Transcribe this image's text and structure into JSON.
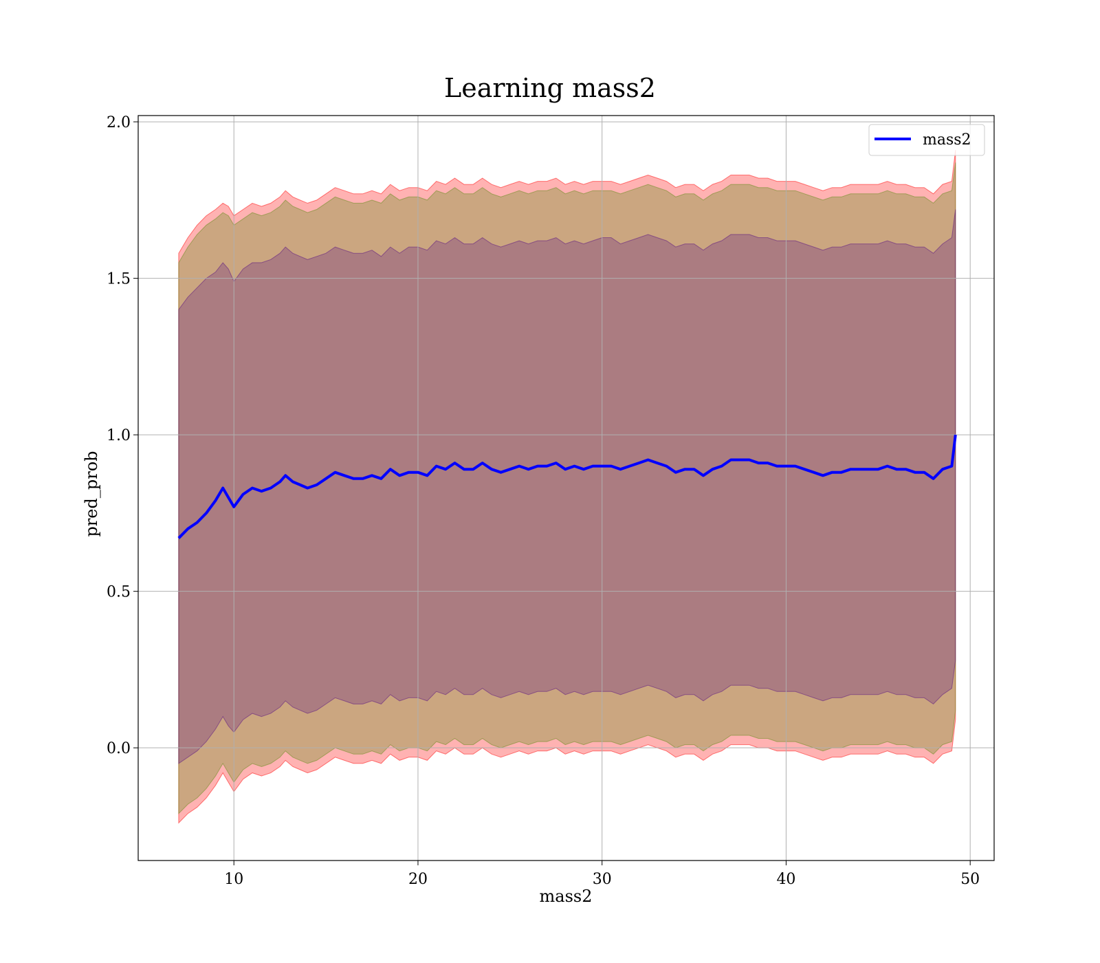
{
  "chart_data": {
    "type": "line",
    "title": "Learning mass2",
    "xlabel": "mass2",
    "ylabel": "pred_prob",
    "xlim": [
      4.8,
      51.3
    ],
    "ylim": [
      -0.36,
      2.02
    ],
    "xticks": [
      10,
      20,
      30,
      40,
      50
    ],
    "yticks": [
      0.0,
      0.5,
      1.0,
      1.5,
      2.0
    ],
    "xtick_labels": [
      "10",
      "20",
      "30",
      "40",
      "50"
    ],
    "ytick_labels": [
      "0.0",
      "0.5",
      "1.0",
      "1.5",
      "2.0"
    ],
    "grid": true,
    "legend": {
      "position": "top-right",
      "entries": [
        "mass2"
      ]
    },
    "series": [
      {
        "name": "mass2",
        "color": "#0000ff",
        "x": [
          7.0,
          7.5,
          8.0,
          8.5,
          9.0,
          9.4,
          9.7,
          10.0,
          10.5,
          11.0,
          11.5,
          12.0,
          12.5,
          12.8,
          13.2,
          13.6,
          14.0,
          14.5,
          15.0,
          15.5,
          16.0,
          16.5,
          17.0,
          17.5,
          18.0,
          18.5,
          19.0,
          19.5,
          20.0,
          20.5,
          21.0,
          21.5,
          22.0,
          22.5,
          23.0,
          23.5,
          24.0,
          24.5,
          25.0,
          25.5,
          26.0,
          26.5,
          27.0,
          27.5,
          28.0,
          28.5,
          29.0,
          29.5,
          30.0,
          30.5,
          31.0,
          31.5,
          32.0,
          32.5,
          33.0,
          33.5,
          34.0,
          34.5,
          35.0,
          35.5,
          36.0,
          36.5,
          37.0,
          37.5,
          38.0,
          38.5,
          39.0,
          39.5,
          40.0,
          40.5,
          41.0,
          41.5,
          42.0,
          42.5,
          43.0,
          43.5,
          44.0,
          44.5,
          45.0,
          45.5,
          46.0,
          46.5,
          47.0,
          47.5,
          48.0,
          48.5,
          49.0,
          49.2
        ],
        "y": [
          0.67,
          0.7,
          0.72,
          0.75,
          0.79,
          0.83,
          0.8,
          0.77,
          0.81,
          0.83,
          0.82,
          0.83,
          0.85,
          0.87,
          0.85,
          0.84,
          0.83,
          0.84,
          0.86,
          0.88,
          0.87,
          0.86,
          0.86,
          0.87,
          0.86,
          0.89,
          0.87,
          0.88,
          0.88,
          0.87,
          0.9,
          0.89,
          0.91,
          0.89,
          0.89,
          0.91,
          0.89,
          0.88,
          0.89,
          0.9,
          0.89,
          0.9,
          0.9,
          0.91,
          0.89,
          0.9,
          0.89,
          0.9,
          0.9,
          0.9,
          0.89,
          0.9,
          0.91,
          0.92,
          0.91,
          0.9,
          0.88,
          0.89,
          0.89,
          0.87,
          0.89,
          0.9,
          0.92,
          0.92,
          0.92,
          0.91,
          0.91,
          0.9,
          0.9,
          0.9,
          0.89,
          0.88,
          0.87,
          0.88,
          0.88,
          0.89,
          0.89,
          0.89,
          0.89,
          0.9,
          0.89,
          0.89,
          0.88,
          0.88,
          0.86,
          0.89,
          0.9,
          1.0
        ]
      }
    ],
    "bands": [
      {
        "color": "#ff0000",
        "opacity": 0.3,
        "upper": [
          1.58,
          1.63,
          1.67,
          1.7,
          1.72,
          1.74,
          1.73,
          1.7,
          1.72,
          1.74,
          1.73,
          1.74,
          1.76,
          1.78,
          1.76,
          1.75,
          1.74,
          1.75,
          1.77,
          1.79,
          1.78,
          1.77,
          1.77,
          1.78,
          1.77,
          1.8,
          1.78,
          1.79,
          1.79,
          1.78,
          1.81,
          1.8,
          1.82,
          1.8,
          1.8,
          1.82,
          1.8,
          1.79,
          1.8,
          1.81,
          1.8,
          1.81,
          1.81,
          1.82,
          1.8,
          1.81,
          1.8,
          1.81,
          1.81,
          1.81,
          1.8,
          1.81,
          1.82,
          1.83,
          1.82,
          1.81,
          1.79,
          1.8,
          1.8,
          1.78,
          1.8,
          1.81,
          1.83,
          1.83,
          1.83,
          1.82,
          1.82,
          1.81,
          1.81,
          1.81,
          1.8,
          1.79,
          1.78,
          1.79,
          1.79,
          1.8,
          1.8,
          1.8,
          1.8,
          1.81,
          1.8,
          1.8,
          1.79,
          1.79,
          1.77,
          1.8,
          1.81,
          1.91
        ],
        "lower": [
          -0.24,
          -0.21,
          -0.19,
          -0.16,
          -0.12,
          -0.08,
          -0.11,
          -0.14,
          -0.1,
          -0.08,
          -0.09,
          -0.08,
          -0.06,
          -0.04,
          -0.06,
          -0.07,
          -0.08,
          -0.07,
          -0.05,
          -0.03,
          -0.04,
          -0.05,
          -0.05,
          -0.04,
          -0.05,
          -0.02,
          -0.04,
          -0.03,
          -0.03,
          -0.04,
          -0.01,
          -0.02,
          0.0,
          -0.02,
          -0.02,
          0.0,
          -0.02,
          -0.03,
          -0.02,
          -0.01,
          -0.02,
          -0.01,
          -0.01,
          0.0,
          -0.02,
          -0.01,
          -0.02,
          -0.01,
          -0.01,
          -0.01,
          -0.02,
          -0.01,
          0.0,
          0.01,
          0.0,
          -0.01,
          -0.03,
          -0.02,
          -0.02,
          -0.04,
          -0.02,
          -0.01,
          0.01,
          0.01,
          0.01,
          0.0,
          0.0,
          -0.01,
          -0.01,
          -0.01,
          -0.02,
          -0.03,
          -0.04,
          -0.03,
          -0.03,
          -0.02,
          -0.02,
          -0.02,
          -0.02,
          -0.01,
          -0.02,
          -0.02,
          -0.03,
          -0.03,
          -0.05,
          -0.02,
          -0.01,
          0.09
        ]
      },
      {
        "color": "#6b8e23",
        "opacity": 0.35,
        "upper": [
          1.55,
          1.6,
          1.64,
          1.67,
          1.69,
          1.71,
          1.7,
          1.67,
          1.69,
          1.71,
          1.7,
          1.71,
          1.73,
          1.75,
          1.73,
          1.72,
          1.71,
          1.72,
          1.74,
          1.76,
          1.75,
          1.74,
          1.74,
          1.75,
          1.74,
          1.77,
          1.75,
          1.76,
          1.76,
          1.75,
          1.78,
          1.77,
          1.79,
          1.77,
          1.77,
          1.79,
          1.77,
          1.76,
          1.77,
          1.78,
          1.77,
          1.78,
          1.78,
          1.79,
          1.77,
          1.78,
          1.77,
          1.78,
          1.78,
          1.78,
          1.77,
          1.78,
          1.79,
          1.8,
          1.79,
          1.78,
          1.76,
          1.77,
          1.77,
          1.75,
          1.77,
          1.78,
          1.8,
          1.8,
          1.8,
          1.79,
          1.79,
          1.78,
          1.78,
          1.78,
          1.77,
          1.76,
          1.75,
          1.76,
          1.76,
          1.77,
          1.77,
          1.77,
          1.77,
          1.78,
          1.77,
          1.77,
          1.76,
          1.76,
          1.74,
          1.77,
          1.78,
          1.87
        ],
        "lower": [
          -0.21,
          -0.18,
          -0.16,
          -0.13,
          -0.09,
          -0.05,
          -0.08,
          -0.11,
          -0.07,
          -0.05,
          -0.06,
          -0.05,
          -0.03,
          -0.01,
          -0.03,
          -0.04,
          -0.05,
          -0.04,
          -0.02,
          0.0,
          -0.01,
          -0.02,
          -0.02,
          -0.01,
          -0.02,
          0.01,
          -0.01,
          0.0,
          0.0,
          -0.01,
          0.02,
          0.01,
          0.03,
          0.01,
          0.01,
          0.03,
          0.01,
          0.0,
          0.01,
          0.02,
          0.01,
          0.02,
          0.02,
          0.03,
          0.01,
          0.02,
          0.01,
          0.02,
          0.02,
          0.02,
          0.01,
          0.02,
          0.03,
          0.04,
          0.03,
          0.02,
          0.0,
          0.01,
          0.01,
          -0.01,
          0.01,
          0.02,
          0.04,
          0.04,
          0.04,
          0.03,
          0.03,
          0.02,
          0.02,
          0.02,
          0.01,
          0.0,
          -0.01,
          0.0,
          0.0,
          0.01,
          0.01,
          0.01,
          0.01,
          0.02,
          0.01,
          0.01,
          0.0,
          0.0,
          -0.02,
          0.01,
          0.02,
          0.12
        ]
      },
      {
        "color": "#4b0082",
        "opacity": 0.25,
        "upper": [
          1.4,
          1.44,
          1.47,
          1.5,
          1.52,
          1.55,
          1.53,
          1.49,
          1.53,
          1.55,
          1.55,
          1.56,
          1.58,
          1.6,
          1.58,
          1.57,
          1.56,
          1.57,
          1.58,
          1.6,
          1.59,
          1.58,
          1.58,
          1.59,
          1.57,
          1.6,
          1.58,
          1.6,
          1.6,
          1.59,
          1.62,
          1.61,
          1.63,
          1.61,
          1.61,
          1.63,
          1.61,
          1.6,
          1.61,
          1.62,
          1.61,
          1.62,
          1.62,
          1.63,
          1.61,
          1.62,
          1.61,
          1.62,
          1.63,
          1.63,
          1.61,
          1.62,
          1.63,
          1.64,
          1.63,
          1.62,
          1.6,
          1.61,
          1.61,
          1.59,
          1.61,
          1.62,
          1.64,
          1.64,
          1.64,
          1.63,
          1.63,
          1.62,
          1.62,
          1.62,
          1.61,
          1.6,
          1.59,
          1.6,
          1.6,
          1.61,
          1.61,
          1.61,
          1.61,
          1.62,
          1.61,
          1.61,
          1.6,
          1.6,
          1.58,
          1.61,
          1.63,
          1.72
        ],
        "lower": [
          -0.05,
          -0.03,
          -0.01,
          0.02,
          0.06,
          0.1,
          0.07,
          0.05,
          0.09,
          0.11,
          0.1,
          0.11,
          0.13,
          0.15,
          0.13,
          0.12,
          0.11,
          0.12,
          0.14,
          0.16,
          0.15,
          0.14,
          0.14,
          0.15,
          0.14,
          0.17,
          0.15,
          0.16,
          0.16,
          0.15,
          0.18,
          0.17,
          0.19,
          0.17,
          0.17,
          0.19,
          0.17,
          0.16,
          0.17,
          0.18,
          0.17,
          0.18,
          0.18,
          0.19,
          0.17,
          0.18,
          0.17,
          0.18,
          0.18,
          0.18,
          0.17,
          0.18,
          0.19,
          0.2,
          0.19,
          0.18,
          0.16,
          0.17,
          0.17,
          0.15,
          0.17,
          0.18,
          0.2,
          0.2,
          0.2,
          0.19,
          0.19,
          0.18,
          0.18,
          0.18,
          0.17,
          0.16,
          0.15,
          0.16,
          0.16,
          0.17,
          0.17,
          0.17,
          0.17,
          0.18,
          0.17,
          0.17,
          0.16,
          0.16,
          0.14,
          0.17,
          0.19,
          0.28
        ]
      }
    ]
  },
  "colors": {
    "line": "#0000ff",
    "grid": "#b0b0b0",
    "axes": "#000000",
    "legend_border": "#cccccc"
  }
}
